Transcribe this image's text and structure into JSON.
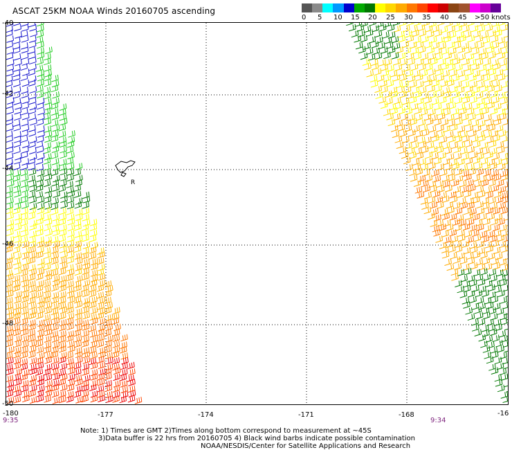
{
  "title": "ASCAT 25KM NOAA Winds 20160705 ascending",
  "legend": {
    "labels": [
      "0",
      "5",
      "10",
      "15",
      "20",
      "25",
      "30",
      "35",
      "40",
      "45",
      ">50 knots"
    ],
    "colors": [
      "#555555",
      "#8a8a8a",
      "#00ffff",
      "#0099ff",
      "#0000cc",
      "#00aa00",
      "#007700",
      "#ffff00",
      "#ffd700",
      "#ffaa00",
      "#ff7700",
      "#ff4400",
      "#ff0000",
      "#cc0000",
      "#8b4513",
      "#a0522d",
      "#ff00ff",
      "#cc00cc",
      "#660099"
    ]
  },
  "axes": {
    "lon_labels": [
      "-180",
      "-177",
      "-174",
      "-171",
      "-168",
      "-16"
    ],
    "lat_labels": [
      "-40",
      "-42",
      "-44",
      "-46",
      "-48",
      "-50"
    ]
  },
  "island": {
    "label": "R"
  },
  "pass_times": {
    "left": "9:35",
    "right": "9:34"
  },
  "notes": {
    "line1": "Note: 1) Times are GMT 2)Times along bottom correspond to measurement at ~45S",
    "line2": "3)Data buffer is 22 hrs from 20160705 4) Black wind barbs indicate possible contamination",
    "line3": "NOAA/NESDIS/Center for Satellite Applications and Research"
  },
  "wind_colors": {
    "blue": "#1010cc",
    "light_green": "#22cc22",
    "dark_green": "#007700",
    "yellow": "#ffff00",
    "gold": "#ffd700",
    "orange": "#ffaa00",
    "dark_orange": "#ff7700",
    "red_orange": "#ff4400",
    "red": "#ee0000"
  }
}
